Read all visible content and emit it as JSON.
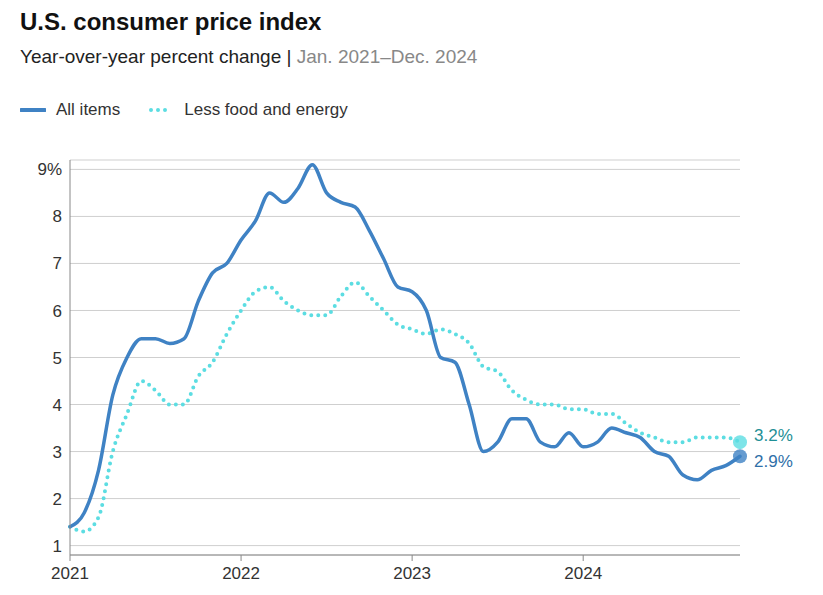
{
  "chart_data": {
    "type": "line",
    "title": "U.S. consumer price index",
    "subtitle": "Year-over-year percent change |",
    "subtitle_note": "Jan. 2021–Dec. 2024",
    "categories": [
      "2021",
      null,
      null,
      null,
      null,
      null,
      null,
      null,
      null,
      null,
      null,
      null,
      "2022",
      null,
      null,
      null,
      null,
      null,
      null,
      null,
      null,
      null,
      null,
      null,
      "2023",
      null,
      null,
      null,
      null,
      null,
      null,
      null,
      null,
      null,
      null,
      null,
      "2024",
      null,
      null,
      null,
      null,
      null,
      null,
      null,
      null,
      null,
      null,
      null
    ],
    "series": [
      {
        "name": "All items",
        "color": "#3f82c4",
        "line_style": "solid",
        "end_label": "2.9%",
        "values": [
          1.4,
          1.7,
          2.6,
          4.2,
          5.0,
          5.4,
          5.4,
          5.3,
          5.4,
          6.2,
          6.8,
          7.0,
          7.5,
          7.9,
          8.5,
          8.3,
          8.6,
          9.1,
          8.5,
          8.3,
          8.2,
          7.7,
          7.1,
          6.5,
          6.4,
          6.0,
          5.0,
          4.9,
          4.0,
          3.0,
          3.2,
          3.7,
          3.7,
          3.2,
          3.1,
          3.4,
          3.1,
          3.2,
          3.5,
          3.4,
          3.3,
          3.0,
          2.9,
          2.5,
          2.4,
          2.6,
          2.7,
          2.9
        ]
      },
      {
        "name": "Less food and energy",
        "color": "#5cdde2",
        "line_style": "dotted",
        "end_label": "3.2%",
        "values": [
          1.4,
          1.3,
          1.6,
          3.0,
          3.8,
          4.5,
          4.3,
          4.0,
          4.0,
          4.6,
          4.9,
          5.5,
          6.0,
          6.4,
          6.5,
          6.2,
          6.0,
          5.9,
          5.9,
          6.3,
          6.6,
          6.3,
          6.0,
          5.7,
          5.6,
          5.5,
          5.6,
          5.5,
          5.3,
          4.8,
          4.7,
          4.3,
          4.1,
          4.0,
          4.0,
          3.9,
          3.9,
          3.8,
          3.8,
          3.6,
          3.4,
          3.3,
          3.2,
          3.2,
          3.3,
          3.3,
          3.3,
          3.2
        ]
      }
    ],
    "ylim": [
      0.8,
      9.2
    ],
    "yticks": [
      1,
      2,
      3,
      4,
      5,
      6,
      7,
      8,
      {
        "value": 9,
        "label": "9%"
      }
    ],
    "grid": true,
    "legend": "top left"
  }
}
